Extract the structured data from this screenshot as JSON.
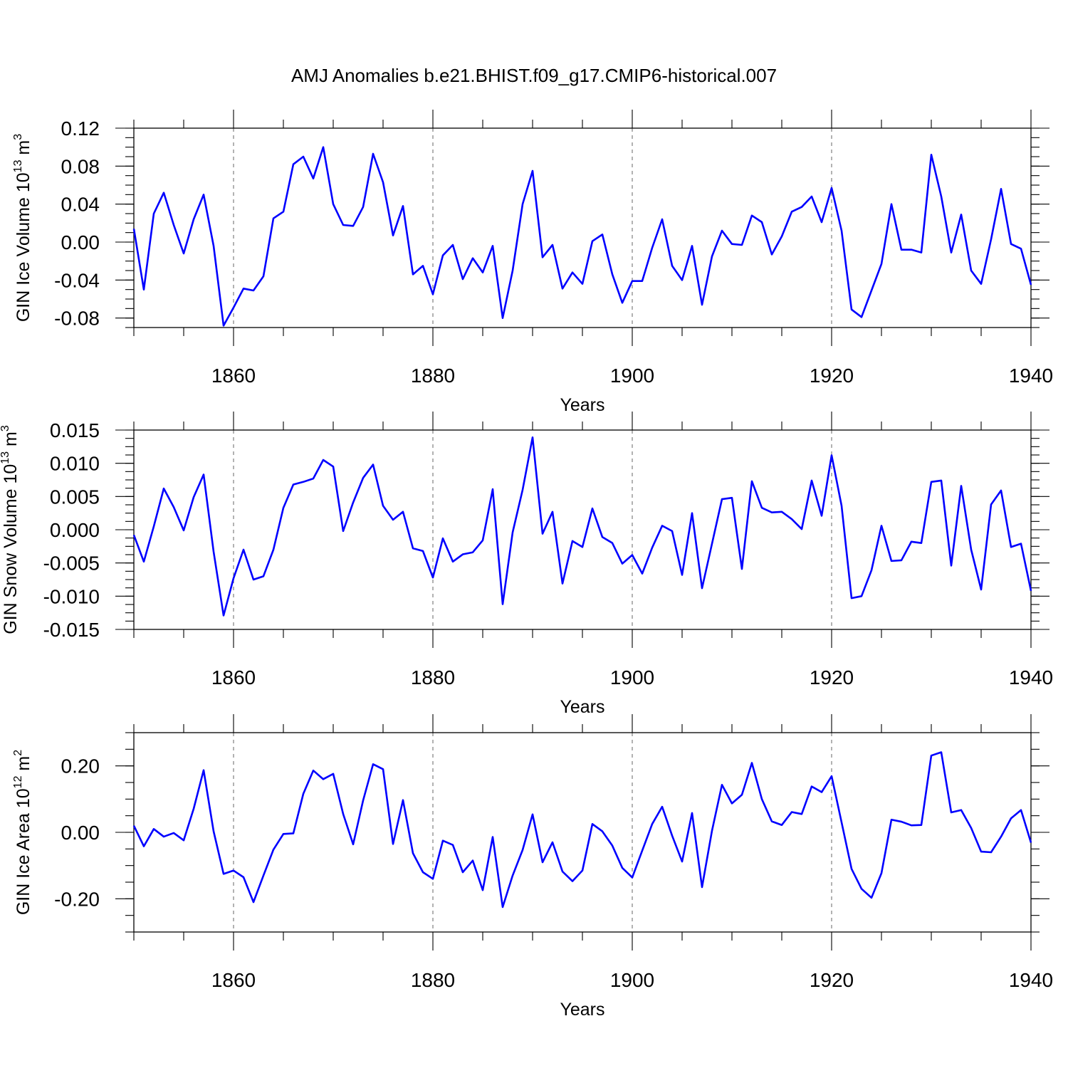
{
  "title": "AMJ Anomalies b.e21.BHIST.f09_g17.CMIP6-historical.007",
  "series_color": "#0000ff",
  "chart_data": [
    {
      "type": "line",
      "ylabel_main": "GIN Ice Volume 10",
      "ylabel_exp": "13",
      "ylabel_unit": " m",
      "ylabel_unit_exp": "3",
      "xlabel": "Years",
      "xlim": [
        1850,
        1940
      ],
      "ylim": [
        -0.09,
        0.12
      ],
      "yticks": [
        0.12,
        0.08,
        0.04,
        0.0,
        -0.04,
        -0.08
      ],
      "ytick_labels": [
        "0.12",
        "0.08",
        "0.04",
        "0.00",
        "-0.04",
        "-0.08"
      ],
      "xticks": [
        1860,
        1880,
        1900,
        1920,
        1940
      ],
      "xtick_labels": [
        "1860",
        "1880",
        "1900",
        "1920",
        "1940"
      ],
      "x_start": 1850,
      "values": [
        0.014,
        -0.05,
        0.03,
        0.052,
        0.018,
        -0.012,
        0.024,
        0.05,
        -0.004,
        -0.088,
        -0.069,
        -0.049,
        -0.051,
        -0.036,
        0.025,
        0.032,
        0.082,
        0.09,
        0.067,
        0.1,
        0.04,
        0.018,
        0.017,
        0.037,
        0.093,
        0.063,
        0.007,
        0.038,
        -0.034,
        -0.025,
        -0.055,
        -0.014,
        -0.003,
        -0.039,
        -0.017,
        -0.032,
        -0.004,
        -0.08,
        -0.03,
        0.04,
        0.075,
        -0.016,
        -0.003,
        -0.049,
        -0.032,
        -0.044,
        0.001,
        0.008,
        -0.034,
        -0.064,
        -0.041,
        -0.041,
        -0.006,
        0.024,
        -0.025,
        -0.04,
        -0.004,
        -0.066,
        -0.015,
        0.012,
        -0.002,
        -0.003,
        0.028,
        0.021,
        -0.013,
        0.006,
        0.032,
        0.037,
        0.048,
        0.021,
        0.057,
        0.012,
        -0.071,
        -0.079,
        -0.051,
        -0.023,
        0.04,
        -0.008,
        -0.008,
        -0.011,
        0.092,
        0.048,
        -0.011,
        0.029,
        -0.03,
        -0.044,
        0.003,
        0.056,
        -0.002,
        -0.007,
        -0.045
      ]
    },
    {
      "type": "line",
      "ylabel_main": "GIN Snow Volume 10",
      "ylabel_exp": "13",
      "ylabel_unit": " m",
      "ylabel_unit_exp": "3",
      "xlabel": "Years",
      "xlim": [
        1850,
        1940
      ],
      "ylim": [
        -0.015,
        0.015
      ],
      "yticks": [
        0.015,
        0.01,
        0.005,
        0.0,
        -0.005,
        -0.01,
        -0.015
      ],
      "ytick_labels": [
        "0.015",
        "0.010",
        "0.005",
        "0.000",
        "-0.005",
        "-0.010",
        "-0.015"
      ],
      "xticks": [
        1860,
        1880,
        1900,
        1920,
        1940
      ],
      "xtick_labels": [
        "1860",
        "1880",
        "1900",
        "1920",
        "1940"
      ],
      "x_start": 1850,
      "values": [
        -0.0008,
        -0.0048,
        0.0005,
        0.0062,
        0.0034,
        -0.0001,
        0.0049,
        0.0083,
        -0.0033,
        -0.0129,
        -0.0073,
        -0.003,
        -0.0075,
        -0.007,
        -0.003,
        0.0033,
        0.0068,
        0.0072,
        0.0077,
        0.0105,
        0.0095,
        -0.0002,
        0.0041,
        0.0078,
        0.0098,
        0.0036,
        0.0015,
        0.0027,
        -0.0028,
        -0.0032,
        -0.0072,
        -0.0013,
        -0.0048,
        -0.0037,
        -0.0034,
        -0.0016,
        0.0061,
        -0.0112,
        -0.0004,
        0.006,
        0.0139,
        -0.0006,
        0.0027,
        -0.0081,
        -0.0017,
        -0.0026,
        0.0032,
        -0.0011,
        -0.002,
        -0.0051,
        -0.0038,
        -0.0066,
        -0.0027,
        0.0006,
        -0.0002,
        -0.0068,
        0.0025,
        -0.0088,
        -0.0021,
        0.0046,
        0.0048,
        -0.0059,
        0.0073,
        0.0033,
        0.0026,
        0.0027,
        0.0016,
        0.0001,
        0.0074,
        0.0021,
        0.0112,
        0.0036,
        -0.0103,
        -0.01,
        -0.0061,
        0.0006,
        -0.0047,
        -0.0046,
        -0.0018,
        -0.002,
        0.0072,
        0.0074,
        -0.0054,
        0.0066,
        -0.003,
        -0.009,
        0.0038,
        0.0059,
        -0.0026,
        -0.0021,
        -0.0092
      ]
    },
    {
      "type": "line",
      "ylabel_main": "GIN Ice Area 10",
      "ylabel_exp": "12",
      "ylabel_unit": " m",
      "ylabel_unit_exp": "2",
      "xlabel": "Years",
      "xlim": [
        1850,
        1940
      ],
      "ylim": [
        -0.3,
        0.3
      ],
      "yticks": [
        0.2,
        0.0,
        -0.2
      ],
      "ytick_labels": [
        "0.20",
        "0.00",
        "-0.20"
      ],
      "xticks": [
        1860,
        1880,
        1900,
        1920,
        1940
      ],
      "xtick_labels": [
        "1860",
        "1880",
        "1900",
        "1920",
        "1940"
      ],
      "x_start": 1850,
      "values": [
        0.02,
        -0.042,
        0.01,
        -0.013,
        -0.002,
        -0.024,
        0.071,
        0.187,
        0.003,
        -0.125,
        -0.115,
        -0.135,
        -0.21,
        -0.13,
        -0.052,
        -0.005,
        -0.003,
        0.116,
        0.186,
        0.16,
        0.176,
        0.055,
        -0.036,
        0.096,
        0.205,
        0.19,
        -0.035,
        0.097,
        -0.063,
        -0.12,
        -0.14,
        -0.025,
        -0.038,
        -0.12,
        -0.085,
        -0.174,
        -0.014,
        -0.225,
        -0.13,
        -0.053,
        0.054,
        -0.09,
        -0.03,
        -0.118,
        -0.147,
        -0.115,
        0.025,
        0.003,
        -0.04,
        -0.107,
        -0.136,
        -0.055,
        0.025,
        0.077,
        -0.01,
        -0.088,
        0.058,
        -0.165,
        0.005,
        0.143,
        0.087,
        0.113,
        0.209,
        0.1,
        0.033,
        0.022,
        0.061,
        0.055,
        0.138,
        0.121,
        0.169,
        0.03,
        -0.11,
        -0.17,
        -0.197,
        -0.123,
        0.038,
        0.032,
        0.021,
        0.022,
        0.231,
        0.241,
        0.06,
        0.067,
        0.013,
        -0.058,
        -0.06,
        -0.013,
        0.042,
        0.067,
        -0.031
      ]
    }
  ]
}
